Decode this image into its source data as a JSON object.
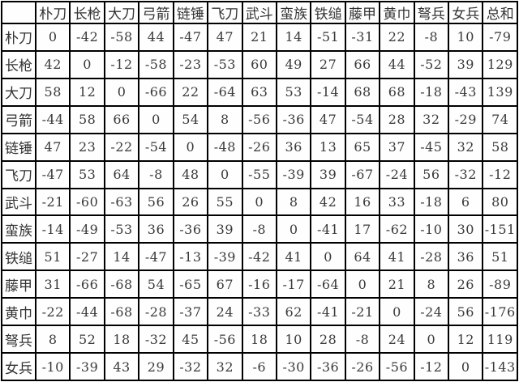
{
  "colors": {
    "border": "#000000",
    "text": "#3a3a3a",
    "background": "#ffffff"
  },
  "table": {
    "corner_label": "",
    "columns": [
      "朴刀",
      "长枪",
      "大刀",
      "弓箭",
      "链锤",
      "飞刀",
      "武斗",
      "蛮族",
      "铁缒",
      "藤甲",
      "黄巾",
      "弩兵",
      "女兵",
      "总和"
    ],
    "rows": [
      {
        "label": "朴刀",
        "values": [
          "0",
          "-42",
          "-58",
          "44",
          "-47",
          "47",
          "21",
          "14",
          "-51",
          "-31",
          "22",
          "-8",
          "10",
          "-79"
        ]
      },
      {
        "label": "长枪",
        "values": [
          "42",
          "0",
          "-12",
          "-58",
          "-23",
          "-53",
          "60",
          "49",
          "27",
          "66",
          "44",
          "-52",
          "39",
          "129"
        ]
      },
      {
        "label": "大刀",
        "values": [
          "58",
          "12",
          "0",
          "-66",
          "22",
          "-64",
          "63",
          "53",
          "-14",
          "68",
          "68",
          "-18",
          "-43",
          "139"
        ]
      },
      {
        "label": "弓箭",
        "values": [
          "-44",
          "58",
          "66",
          "0",
          "54",
          "8",
          "-56",
          "-36",
          "47",
          "-54",
          "28",
          "32",
          "-29",
          "74"
        ]
      },
      {
        "label": "链锤",
        "values": [
          "47",
          "23",
          "-22",
          "-54",
          "0",
          "-48",
          "-26",
          "36",
          "13",
          "65",
          "37",
          "-45",
          "32",
          "58"
        ]
      },
      {
        "label": "飞刀",
        "values": [
          "-47",
          "53",
          "64",
          "-8",
          "48",
          "0",
          "-55",
          "-39",
          "39",
          "-67",
          "-24",
          "56",
          "-32",
          "-12"
        ]
      },
      {
        "label": "武斗",
        "values": [
          "-21",
          "-60",
          "-63",
          "56",
          "26",
          "55",
          "0",
          "8",
          "42",
          "16",
          "33",
          "-18",
          "6",
          "80"
        ]
      },
      {
        "label": "蛮族",
        "values": [
          "-14",
          "-49",
          "-53",
          "36",
          "-36",
          "39",
          "-8",
          "0",
          "-41",
          "17",
          "-62",
          "-10",
          "30",
          "-151"
        ]
      },
      {
        "label": "铁缒",
        "values": [
          "51",
          "-27",
          "14",
          "-47",
          "-13",
          "-39",
          "-42",
          "41",
          "0",
          "64",
          "41",
          "-28",
          "36",
          "51"
        ]
      },
      {
        "label": "藤甲",
        "values": [
          "31",
          "-66",
          "-68",
          "54",
          "-65",
          "67",
          "-16",
          "-17",
          "-64",
          "0",
          "21",
          "8",
          "26",
          "-89"
        ]
      },
      {
        "label": "黄巾",
        "values": [
          "-22",
          "-44",
          "-68",
          "-28",
          "-37",
          "24",
          "-33",
          "62",
          "-41",
          "-21",
          "0",
          "-24",
          "56",
          "-176"
        ]
      },
      {
        "label": "弩兵",
        "values": [
          "8",
          "52",
          "18",
          "-32",
          "45",
          "-56",
          "18",
          "10",
          "28",
          "-8",
          "24",
          "0",
          "12",
          "119"
        ]
      },
      {
        "label": "女兵",
        "values": [
          "-10",
          "-39",
          "43",
          "29",
          "-32",
          "32",
          "-6",
          "-30",
          "-36",
          "-26",
          "-56",
          "-12",
          "0",
          "-143"
        ]
      }
    ]
  },
  "chart_data": {
    "type": "table",
    "title": "",
    "description": "Unit-vs-unit matchup score matrix; row unit against column unit, last column is row total",
    "columns": [
      "朴刀",
      "长枪",
      "大刀",
      "弓箭",
      "链锤",
      "飞刀",
      "武斗",
      "蛮族",
      "铁缒",
      "藤甲",
      "黄巾",
      "弩兵",
      "女兵",
      "总和"
    ],
    "row_labels": [
      "朴刀",
      "长枪",
      "大刀",
      "弓箭",
      "链锤",
      "飞刀",
      "武斗",
      "蛮族",
      "铁缒",
      "藤甲",
      "黄巾",
      "弩兵",
      "女兵"
    ],
    "values": [
      [
        0,
        -42,
        -58,
        44,
        -47,
        47,
        21,
        14,
        -51,
        -31,
        22,
        -8,
        10,
        -79
      ],
      [
        42,
        0,
        -12,
        -58,
        -23,
        -53,
        60,
        49,
        27,
        66,
        44,
        -52,
        39,
        129
      ],
      [
        58,
        12,
        0,
        -66,
        22,
        -64,
        63,
        53,
        -14,
        68,
        68,
        -18,
        -43,
        139
      ],
      [
        -44,
        58,
        66,
        0,
        54,
        8,
        -56,
        -36,
        47,
        -54,
        28,
        32,
        -29,
        74
      ],
      [
        47,
        23,
        -22,
        -54,
        0,
        -48,
        -26,
        36,
        13,
        65,
        37,
        -45,
        32,
        58
      ],
      [
        -47,
        53,
        64,
        -8,
        48,
        0,
        -55,
        -39,
        39,
        -67,
        -24,
        56,
        -32,
        -12
      ],
      [
        -21,
        -60,
        -63,
        56,
        26,
        55,
        0,
        8,
        42,
        16,
        33,
        -18,
        6,
        80
      ],
      [
        -14,
        -49,
        -53,
        36,
        -36,
        39,
        -8,
        0,
        -41,
        17,
        -62,
        -10,
        30,
        -151
      ],
      [
        51,
        -27,
        14,
        -47,
        -13,
        -39,
        -42,
        41,
        0,
        64,
        41,
        -28,
        36,
        51
      ],
      [
        31,
        -66,
        -68,
        54,
        -65,
        67,
        -16,
        -17,
        -64,
        0,
        21,
        8,
        26,
        -89
      ],
      [
        -22,
        -44,
        -68,
        -28,
        -37,
        24,
        -33,
        62,
        -41,
        -21,
        0,
        -24,
        56,
        -176
      ],
      [
        8,
        52,
        18,
        -32,
        45,
        -56,
        18,
        10,
        28,
        -8,
        24,
        0,
        12,
        119
      ],
      [
        -10,
        -39,
        43,
        29,
        -32,
        32,
        -6,
        -30,
        -36,
        -26,
        -56,
        -12,
        0,
        -143
      ]
    ]
  }
}
